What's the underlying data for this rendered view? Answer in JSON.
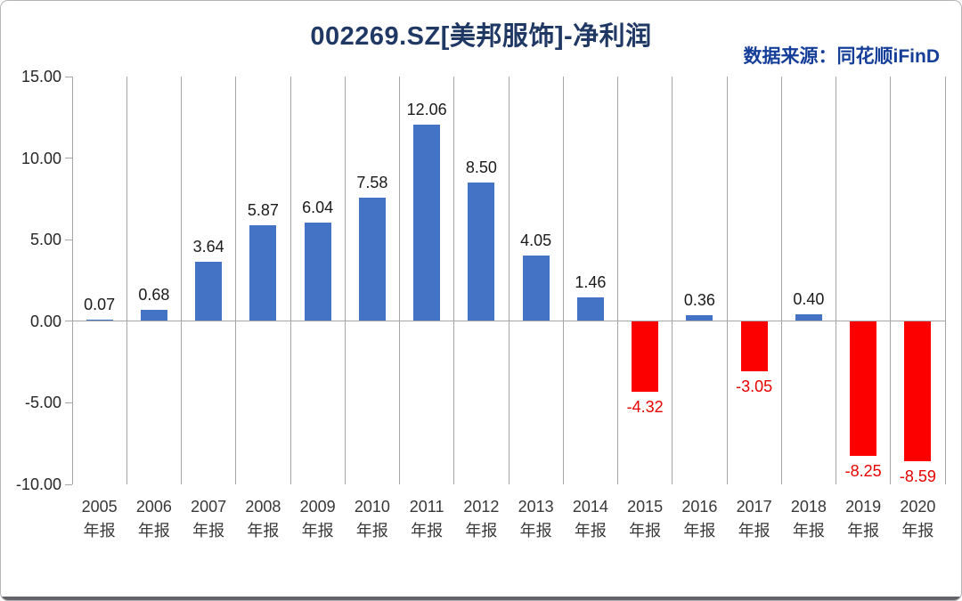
{
  "header": {
    "title": "002269.SZ[美邦服饰]-净利润",
    "source_label": "数据来源：同花顺iFinD",
    "title_color": "#1f3864",
    "source_color": "#153e99"
  },
  "chart_data": {
    "type": "bar",
    "title": "002269.SZ[美邦服饰]-净利润",
    "categories": [
      {
        "year": "2005",
        "period": "年报"
      },
      {
        "year": "2006",
        "period": "年报"
      },
      {
        "year": "2007",
        "period": "年报"
      },
      {
        "year": "2008",
        "period": "年报"
      },
      {
        "year": "2009",
        "period": "年报"
      },
      {
        "year": "2010",
        "period": "年报"
      },
      {
        "year": "2011",
        "period": "年报"
      },
      {
        "year": "2012",
        "period": "年报"
      },
      {
        "year": "2013",
        "period": "年报"
      },
      {
        "year": "2014",
        "period": "年报"
      },
      {
        "year": "2015",
        "period": "年报"
      },
      {
        "year": "2016",
        "period": "年报"
      },
      {
        "year": "2017",
        "period": "年报"
      },
      {
        "year": "2018",
        "period": "年报"
      },
      {
        "year": "2019",
        "period": "年报"
      },
      {
        "year": "2020",
        "period": "年报"
      }
    ],
    "values": [
      0.07,
      0.68,
      3.64,
      5.87,
      6.04,
      7.58,
      12.06,
      8.5,
      4.05,
      1.46,
      -4.32,
      0.36,
      -3.05,
      0.4,
      -8.25,
      -8.59
    ],
    "value_labels": [
      "0.07",
      "0.68",
      "3.64",
      "5.87",
      "6.04",
      "7.58",
      "12.06",
      "8.50",
      "4.05",
      "1.46",
      "-4.32",
      "0.36",
      "-3.05",
      "0.40",
      "-8.25",
      "-8.59"
    ],
    "y_ticks": [
      15,
      10,
      5,
      0,
      -5,
      -10
    ],
    "ylim": [
      -10,
      15
    ],
    "xlabel": "",
    "ylabel": "",
    "grid": "vertical-category-boundaries",
    "legend": "none",
    "positive_color": "#4472c4",
    "negative_color": "#fc0000",
    "positive_label_color": "#1a1a1a",
    "negative_label_color": "#e60000",
    "gridline_color": "#a6a6a6",
    "axis_label_color": "#262626"
  }
}
